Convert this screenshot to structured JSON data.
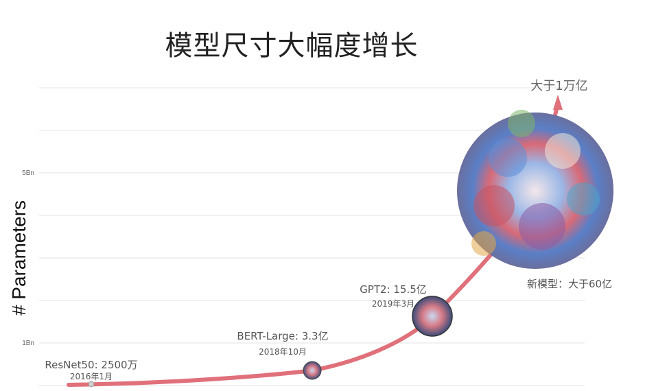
{
  "chart_data": {
    "type": "line",
    "title": "模型尺寸大幅度增长",
    "ylabel": "# Parameters",
    "y_ticks": [
      "5Bn",
      "1Bn"
    ],
    "grid": true,
    "points": [
      {
        "label": "ResNet50: 2500万",
        "date": "2016年1月",
        "x": "2016-01",
        "y": 0.025
      },
      {
        "label": "BERT-Large: 3.3亿",
        "date": "2018年10月",
        "x": "2018-10",
        "y": 0.33
      },
      {
        "label": "GPT2: 15.5亿",
        "date": "2019年3月",
        "x": "2019-03",
        "y": 1.55
      },
      {
        "label": "新模型：大于60亿",
        "date": "",
        "x": "",
        "y": 6.0
      }
    ],
    "arrow_label": "大于1万亿",
    "colors": {
      "curve": "#e0707a",
      "grid": "#e0e0e0"
    }
  }
}
